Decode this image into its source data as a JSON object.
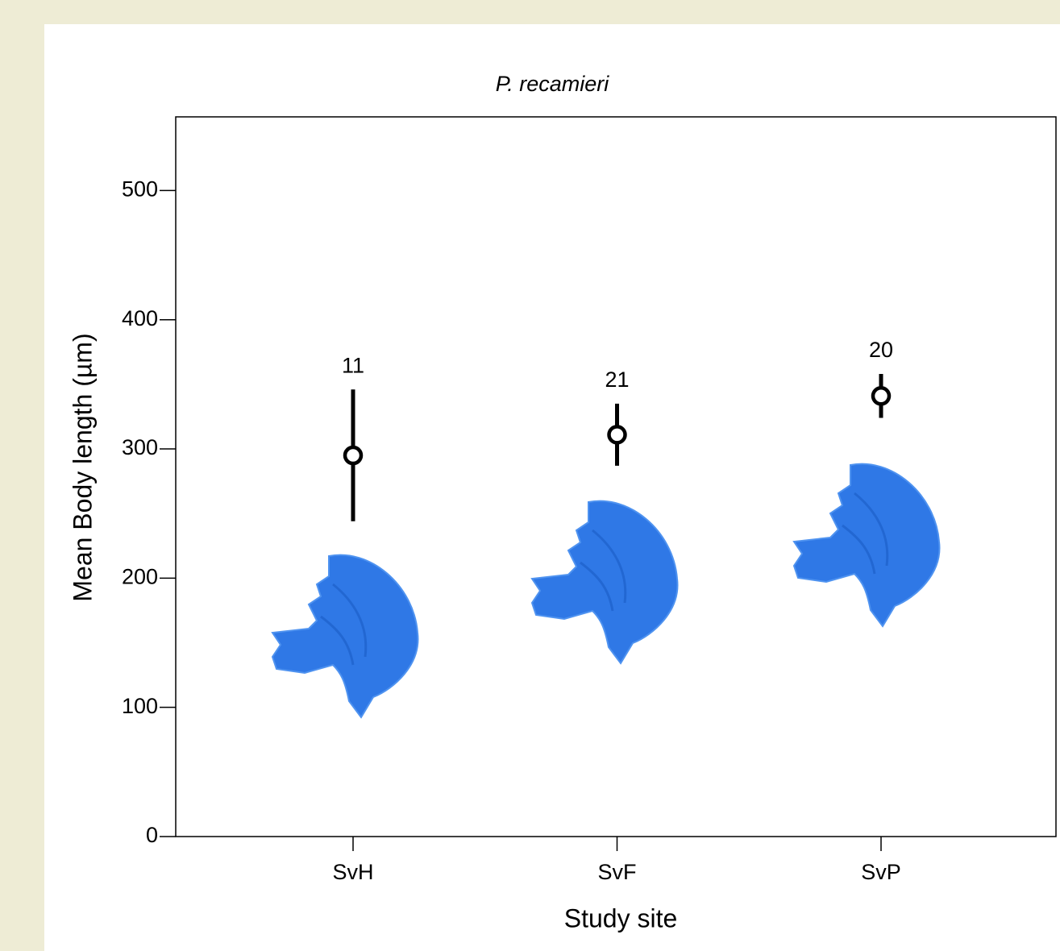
{
  "chart_data": {
    "type": "errorbar",
    "title": "P. recamieri",
    "x_label": "Study site",
    "y_label": "Mean Body length (µm)",
    "categories": [
      "SvH",
      "SvF",
      "SvP"
    ],
    "values": [
      295,
      311,
      341
    ],
    "error": [
      51,
      24,
      17
    ],
    "n_labels": [
      11,
      21,
      20
    ],
    "color": "#000000",
    "ylim": [
      0,
      557
    ],
    "yticks": [
      0,
      100,
      200,
      300,
      400,
      500
    ]
  }
}
